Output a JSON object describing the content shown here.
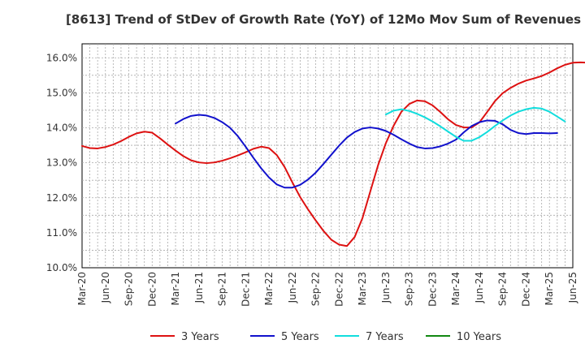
{
  "chart_data": {
    "type": "line",
    "title": "[8613]  Trend of StDev of Growth Rate (YoY) of 12Mo Mov Sum of Revenues",
    "xlabel": "",
    "ylabel": "",
    "ylim": [
      10.0,
      16.4
    ],
    "yticks": [
      10.0,
      11.0,
      12.0,
      13.0,
      14.0,
      15.0,
      16.0
    ],
    "ytick_labels": [
      "10.0%",
      "11.0%",
      "12.0%",
      "13.0%",
      "14.0%",
      "15.0%",
      "16.0%"
    ],
    "xticks": [
      "Mar-20",
      "Jun-20",
      "Sep-20",
      "Dec-20",
      "Mar-21",
      "Jun-21",
      "Sep-21",
      "Dec-21",
      "Mar-22",
      "Jun-22",
      "Sep-22",
      "Dec-22",
      "Mar-23",
      "Jun-23",
      "Sep-23",
      "Dec-23",
      "Mar-24",
      "Jun-24",
      "Sep-24",
      "Dec-24",
      "Mar-25",
      "Jun-25"
    ],
    "x_start": "Mar-20",
    "x_end": "Jun-25",
    "grid": true,
    "legend_position": "bottom",
    "series": [
      {
        "name": "3 Years",
        "color": "#dd1111",
        "start_index": 0,
        "values": [
          13.48,
          13.42,
          13.41,
          13.45,
          13.52,
          13.62,
          13.74,
          13.84,
          13.89,
          13.86,
          13.7,
          13.52,
          13.35,
          13.19,
          13.07,
          13.01,
          12.99,
          13.01,
          13.06,
          13.13,
          13.21,
          13.3,
          13.4,
          13.46,
          13.42,
          13.22,
          12.88,
          12.44,
          12.02,
          11.67,
          11.35,
          11.05,
          10.8,
          10.66,
          10.62,
          10.88,
          11.42,
          12.18,
          12.93,
          13.56,
          14.06,
          14.46,
          14.68,
          14.78,
          14.76,
          14.64,
          14.45,
          14.24,
          14.08,
          14.01,
          14.01,
          14.15,
          14.45,
          14.76,
          14.99,
          15.14,
          15.26,
          15.35,
          15.41,
          15.48,
          15.58,
          15.7,
          15.8,
          15.86,
          15.87,
          15.86
        ]
      },
      {
        "name": "5 Years",
        "color": "#1111cc",
        "start_index": 12,
        "values": [
          14.12,
          14.25,
          14.34,
          14.37,
          14.35,
          14.28,
          14.16,
          14.0,
          13.76,
          13.46,
          13.14,
          12.84,
          12.58,
          12.38,
          12.29,
          12.29,
          12.37,
          12.52,
          12.72,
          12.97,
          13.23,
          13.49,
          13.72,
          13.88,
          13.98,
          14.01,
          13.98,
          13.91,
          13.8,
          13.67,
          13.55,
          13.45,
          13.41,
          13.42,
          13.47,
          13.55,
          13.66,
          13.87,
          14.05,
          14.16,
          14.21,
          14.2,
          14.1,
          13.94,
          13.85,
          13.82,
          13.85,
          13.85,
          13.84,
          13.85
        ]
      },
      {
        "name": "7 Years",
        "color": "#11dddd",
        "start_index": 39,
        "values": [
          14.38,
          14.49,
          14.53,
          14.48,
          14.4,
          14.3,
          14.18,
          14.04,
          13.89,
          13.74,
          13.63,
          13.63,
          13.73,
          13.88,
          14.05,
          14.21,
          14.35,
          14.46,
          14.53,
          14.57,
          14.55,
          14.46,
          14.32,
          14.18
        ]
      },
      {
        "name": "10 Years",
        "color": "#118811",
        "start_index": 0,
        "values": []
      }
    ]
  }
}
